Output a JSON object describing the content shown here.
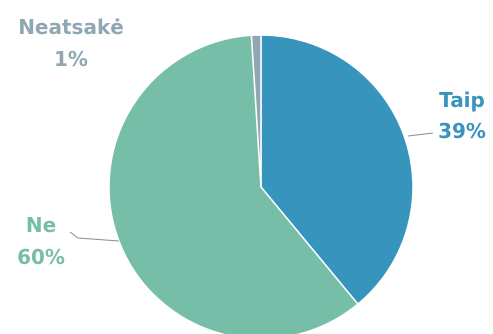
{
  "chart_data": {
    "type": "pie",
    "title": "",
    "slices": [
      {
        "label": "Taip",
        "value": 39,
        "display": "39%",
        "color": "#3794bd"
      },
      {
        "label": "Ne",
        "value": 60,
        "display": "60%",
        "color": "#77bea8"
      },
      {
        "label": "Neatsakė",
        "value": 1,
        "display": "1%",
        "color": "#8fa7b3"
      }
    ],
    "legend": "none",
    "label_color_taip": "#3794bd",
    "label_color_ne": "#77bea8",
    "label_color_neatsake": "#8fa7b3"
  }
}
